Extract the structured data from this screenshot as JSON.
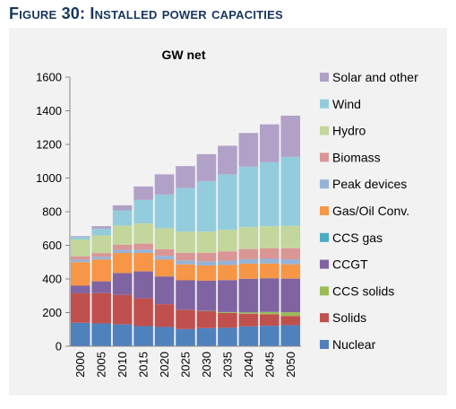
{
  "figure": {
    "title": "Figure 30: Installed power capacities"
  },
  "chart_data": {
    "type": "bar",
    "stacked": true,
    "title": "GW net",
    "xlabel": "",
    "ylabel": "",
    "ylim": [
      0,
      1600
    ],
    "yticks": [
      "0",
      "200",
      "400",
      "600",
      "800",
      "1000",
      "1200",
      "1400",
      "1600"
    ],
    "grid": false,
    "legend_position": "right",
    "categories": [
      "2000",
      "2005",
      "2010",
      "2015",
      "2020",
      "2025",
      "2030",
      "2035",
      "2040",
      "2045",
      "2050"
    ],
    "series": [
      {
        "name": "Nuclear",
        "color": "#4f81bd",
        "values": [
          140,
          136,
          130,
          120,
          115,
          102,
          108,
          110,
          118,
          122,
          125
        ]
      },
      {
        "name": "Solids",
        "color": "#c0504d",
        "values": [
          175,
          180,
          175,
          165,
          135,
          115,
          100,
          88,
          75,
          68,
          55
        ]
      },
      {
        "name": "CCS solids",
        "color": "#9bbb59",
        "values": [
          0,
          0,
          0,
          0,
          0,
          0,
          2,
          5,
          8,
          14,
          22
        ]
      },
      {
        "name": "CCGT",
        "color": "#8064a2",
        "values": [
          45,
          70,
          130,
          160,
          165,
          175,
          180,
          190,
          200,
          200,
          200
        ]
      },
      {
        "name": "CCS gas",
        "color": "#4bacc6",
        "values": [
          0,
          0,
          0,
          0,
          0,
          0,
          0,
          0,
          0,
          0,
          0
        ]
      },
      {
        "name": "Gas/Oil Conv.",
        "color": "#f79646",
        "values": [
          140,
          130,
          120,
          110,
          100,
          95,
          90,
          90,
          90,
          88,
          85
        ]
      },
      {
        "name": "Peak devices",
        "color": "#95b3d7",
        "values": [
          15,
          16,
          18,
          20,
          22,
          24,
          25,
          26,
          27,
          28,
          30
        ]
      },
      {
        "name": "Biomass",
        "color": "#da9694",
        "values": [
          20,
          22,
          30,
          35,
          40,
          45,
          50,
          55,
          60,
          62,
          65
        ]
      },
      {
        "name": "Hydro",
        "color": "#c3d69b",
        "values": [
          100,
          105,
          115,
          120,
          125,
          125,
          127,
          128,
          130,
          132,
          134
        ]
      },
      {
        "name": "Wind",
        "color": "#93cddd",
        "values": [
          15,
          40,
          90,
          140,
          200,
          260,
          300,
          330,
          360,
          380,
          410
        ]
      },
      {
        "name": "Solar and other",
        "color": "#b2a1c7",
        "values": [
          5,
          15,
          30,
          80,
          120,
          130,
          160,
          170,
          200,
          225,
          245
        ]
      }
    ]
  }
}
